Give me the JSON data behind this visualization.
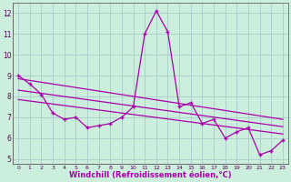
{
  "x": [
    0,
    1,
    2,
    3,
    4,
    5,
    6,
    7,
    8,
    9,
    10,
    11,
    12,
    13,
    14,
    15,
    16,
    17,
    18,
    19,
    20,
    21,
    22,
    23
  ],
  "line1": [
    9.0,
    8.6,
    8.1,
    7.2,
    6.9,
    7.0,
    6.5,
    6.6,
    6.7,
    7.0,
    7.5,
    11.0,
    12.1,
    11.1,
    7.5,
    7.7,
    6.7,
    6.9,
    6.0,
    6.3,
    6.5,
    5.2,
    5.4,
    5.9
  ],
  "trend1_x": [
    0,
    23
  ],
  "trend1_y": [
    8.85,
    6.9
  ],
  "trend2_x": [
    0,
    23
  ],
  "trend2_y": [
    8.3,
    6.55
  ],
  "trend3_x": [
    0,
    23
  ],
  "trend3_y": [
    7.85,
    6.2
  ],
  "line_color": "#aa00aa",
  "bg_color": "#cceedd",
  "grid_color": "#aacccc",
  "xlabel": "Windchill (Refroidissement éolien,°C)",
  "ylim": [
    4.75,
    12.5
  ],
  "xlim": [
    -0.5,
    23.5
  ],
  "yticks": [
    5,
    6,
    7,
    8,
    9,
    10,
    11,
    12
  ],
  "xticks": [
    0,
    1,
    2,
    3,
    4,
    5,
    6,
    7,
    8,
    9,
    10,
    11,
    12,
    13,
    14,
    15,
    16,
    17,
    18,
    19,
    20,
    21,
    22,
    23
  ]
}
